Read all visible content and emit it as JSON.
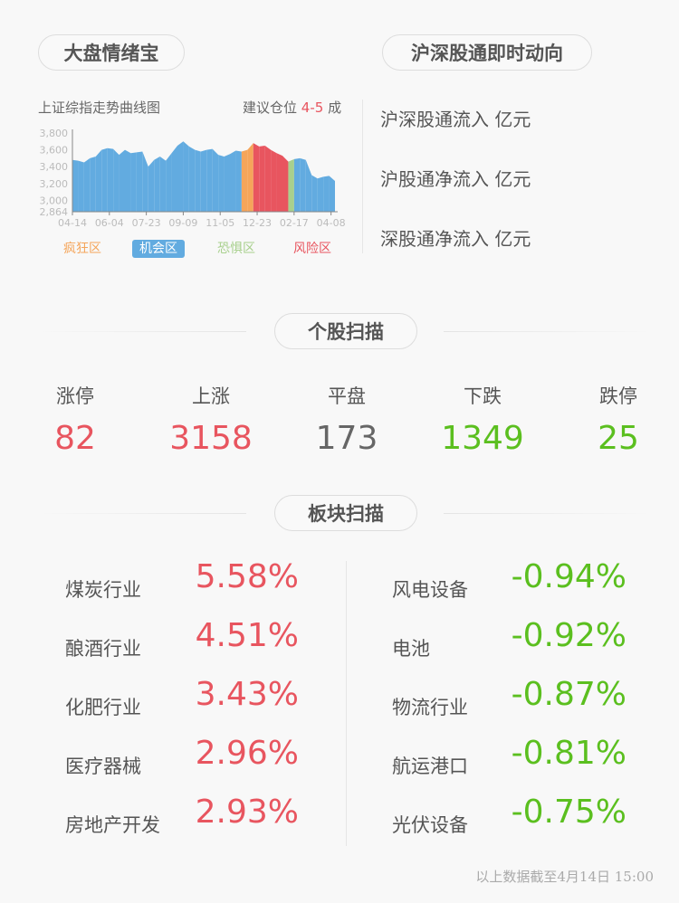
{
  "sentiment": {
    "title": "大盘情绪宝",
    "chart_label": "上证综指走势曲线图",
    "advice_prefix": "建议仓位",
    "advice_value": "4-5",
    "advice_suffix": "成",
    "legend": [
      {
        "label": "疯狂区",
        "color": "#f5a55a"
      },
      {
        "label": "机会区",
        "color": "#62abe0"
      },
      {
        "label": "恐惧区",
        "color": "#a8d08d"
      },
      {
        "label": "风险区",
        "color": "#e8555f"
      }
    ]
  },
  "chart_data": {
    "type": "area",
    "xlabel": "",
    "ylabel": "",
    "ylim": [
      2864,
      3800
    ],
    "y_ticks": [
      "2,864",
      "3,000",
      "3,200",
      "3,400",
      "3,600",
      "3,800"
    ],
    "x_ticks": [
      "04-14",
      "06-04",
      "07-23",
      "09-09",
      "11-05",
      "12-23",
      "02-17",
      "04-08"
    ],
    "values": [
      3480,
      3470,
      3450,
      3500,
      3520,
      3600,
      3620,
      3610,
      3540,
      3600,
      3560,
      3570,
      3580,
      3400,
      3480,
      3520,
      3470,
      3560,
      3650,
      3700,
      3640,
      3600,
      3580,
      3600,
      3610,
      3540,
      3520,
      3550,
      3590,
      3580,
      3600,
      3680,
      3640,
      3650,
      3600,
      3560,
      3530,
      3460,
      3490,
      3500,
      3480,
      3300,
      3260,
      3280,
      3290,
      3230
    ],
    "zones": [
      "机会区",
      "机会区",
      "机会区",
      "机会区",
      "机会区",
      "机会区",
      "机会区",
      "机会区",
      "机会区",
      "机会区",
      "机会区",
      "机会区",
      "机会区",
      "机会区",
      "机会区",
      "机会区",
      "机会区",
      "机会区",
      "机会区",
      "机会区",
      "机会区",
      "机会区",
      "机会区",
      "机会区",
      "机会区",
      "机会区",
      "机会区",
      "机会区",
      "机会区",
      "疯狂区",
      "疯狂区",
      "风险区",
      "风险区",
      "风险区",
      "风险区",
      "风险区",
      "风险区",
      "恐惧区",
      "机会区",
      "机会区",
      "机会区",
      "机会区",
      "机会区",
      "机会区",
      "机会区",
      "机会区"
    ]
  },
  "connect": {
    "title": "沪深股通即时动向",
    "rows": [
      "沪深股通流入 亿元",
      "沪股通净流入 亿元",
      "深股通净流入 亿元"
    ]
  },
  "stocks": {
    "title": "个股扫描",
    "items": [
      {
        "label": "涨停",
        "value": "82",
        "color": "#e8555f"
      },
      {
        "label": "上涨",
        "value": "3158",
        "color": "#e8555f"
      },
      {
        "label": "平盘",
        "value": "173",
        "color": "#666666"
      },
      {
        "label": "下跌",
        "value": "1349",
        "color": "#5bbf1f"
      },
      {
        "label": "跌停",
        "value": "25",
        "color": "#5bbf1f"
      }
    ]
  },
  "sectors": {
    "title": "板块扫描",
    "up": [
      {
        "name": "煤炭行业",
        "pct": "5.58%"
      },
      {
        "name": "酿酒行业",
        "pct": "4.51%"
      },
      {
        "name": "化肥行业",
        "pct": "3.43%"
      },
      {
        "name": "医疗器械",
        "pct": "2.96%"
      },
      {
        "name": "房地产开发",
        "pct": "2.93%"
      }
    ],
    "down": [
      {
        "name": "风电设备",
        "pct": "-0.94%"
      },
      {
        "name": "电池",
        "pct": "-0.92%"
      },
      {
        "name": "物流行业",
        "pct": "-0.87%"
      },
      {
        "name": "航运港口",
        "pct": "-0.81%"
      },
      {
        "name": "光伏设备",
        "pct": "-0.75%"
      }
    ],
    "up_color": "#e8555f",
    "down_color": "#5bbf1f"
  },
  "footer": "以上数据截至4月14日 15:00"
}
